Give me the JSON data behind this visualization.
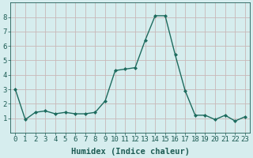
{
  "x": [
    0,
    1,
    2,
    3,
    4,
    5,
    6,
    7,
    8,
    9,
    10,
    11,
    12,
    13,
    14,
    15,
    16,
    17,
    18,
    19,
    20,
    21,
    22,
    23
  ],
  "y": [
    3.0,
    0.9,
    1.4,
    1.5,
    1.3,
    1.4,
    1.3,
    1.3,
    1.4,
    2.2,
    4.3,
    4.4,
    4.5,
    6.4,
    8.1,
    8.1,
    5.4,
    2.9,
    1.2,
    1.2,
    0.9,
    1.2,
    0.8,
    1.1
  ],
  "xlabel": "Humidex (Indice chaleur)",
  "ylim": [
    0,
    9
  ],
  "xlim": [
    -0.5,
    23.5
  ],
  "yticks": [
    1,
    2,
    3,
    4,
    5,
    6,
    7,
    8
  ],
  "xticks": [
    0,
    1,
    2,
    3,
    4,
    5,
    6,
    7,
    8,
    9,
    10,
    11,
    12,
    13,
    14,
    15,
    16,
    17,
    18,
    19,
    20,
    21,
    22,
    23
  ],
  "line_color": "#1d6b5e",
  "marker": "D",
  "marker_size": 2.0,
  "bg_color": "#d6edee",
  "grid_color": "#c8b8b8",
  "xlabel_fontsize": 7.5,
  "tick_fontsize": 6.5,
  "tick_color": "#1d5c54"
}
